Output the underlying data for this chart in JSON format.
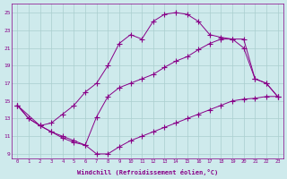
{
  "xlabel": "Windchill (Refroidissement éolien,°C)",
  "bg_color": "#ceeaec",
  "line_color": "#880088",
  "grid_color": "#aacece",
  "xlim": [
    -0.5,
    23.5
  ],
  "ylim": [
    8.5,
    26.0
  ],
  "xtick_labels": [
    "0",
    "1",
    "2",
    "3",
    "4",
    "5",
    "6",
    "7",
    "8",
    "9",
    "10",
    "11",
    "12",
    "13",
    "14",
    "15",
    "16",
    "17",
    "18",
    "19",
    "20",
    "21",
    "22",
    "23"
  ],
  "ytick_vals": [
    9,
    11,
    13,
    15,
    17,
    19,
    21,
    23,
    25
  ],
  "line1_x": [
    0,
    1,
    2,
    3,
    4,
    5,
    6,
    7,
    8,
    9,
    10,
    11,
    12,
    13,
    14,
    15,
    16,
    17,
    18,
    19,
    20,
    21,
    22,
    23
  ],
  "line1_y": [
    14.5,
    13.0,
    12.2,
    12.5,
    13.5,
    14.5,
    16.0,
    17.0,
    19.0,
    21.5,
    22.5,
    22.0,
    24.0,
    24.8,
    25.0,
    24.8,
    24.0,
    22.5,
    22.2,
    22.0,
    22.0,
    17.5,
    17.0,
    15.5
  ],
  "line2_x": [
    0,
    1,
    2,
    3,
    4,
    5,
    6,
    7,
    8,
    9,
    10,
    11,
    12,
    13,
    14,
    15,
    16,
    17,
    18,
    19,
    20,
    21,
    22,
    23
  ],
  "line2_y": [
    14.5,
    13.0,
    12.2,
    11.5,
    10.8,
    10.3,
    10.0,
    9.0,
    9.0,
    9.8,
    10.5,
    11.0,
    11.5,
    12.0,
    12.5,
    13.0,
    13.5,
    14.0,
    14.5,
    15.0,
    15.2,
    15.3,
    15.5,
    15.5
  ],
  "line3_x": [
    0,
    2,
    3,
    4,
    5,
    6,
    7,
    8,
    9,
    10,
    11,
    12,
    13,
    14,
    15,
    16,
    17,
    18,
    19,
    20,
    21,
    22,
    23
  ],
  "line3_y": [
    14.5,
    12.2,
    11.5,
    11.0,
    10.5,
    10.0,
    13.2,
    15.5,
    16.5,
    17.0,
    17.5,
    18.0,
    18.8,
    19.5,
    20.0,
    20.8,
    21.5,
    22.0,
    22.0,
    21.0,
    17.5,
    17.0,
    15.5
  ]
}
